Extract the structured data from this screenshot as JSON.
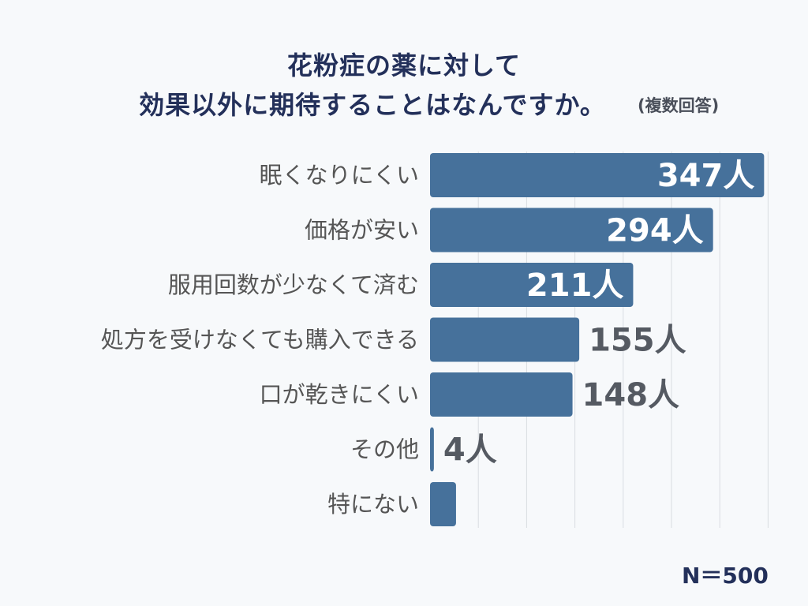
{
  "title_line1": "花粉症の薬に対して",
  "title_line2": "効果以外に期待することはなんですか。",
  "subtitle": "(複数回答)",
  "n_label": "N＝500",
  "colors": {
    "bar": "#46719b",
    "grid": "#d9dde2",
    "title": "#23305a"
  },
  "chart_data": {
    "type": "bar",
    "orientation": "horizontal",
    "categories": [
      "眠くなりにくい",
      "価格が安い",
      "服用回数が少なくて済む",
      "処方を受けなくても購入できる",
      "口が乾きにくい",
      "その他",
      "特にない"
    ],
    "values": [
      347,
      294,
      211,
      155,
      148,
      4,
      27
    ],
    "value_labels": [
      "347人",
      "294人",
      "211人",
      "155人",
      "148人",
      "4人",
      ""
    ],
    "xlim": [
      0,
      350
    ],
    "grid": true
  }
}
